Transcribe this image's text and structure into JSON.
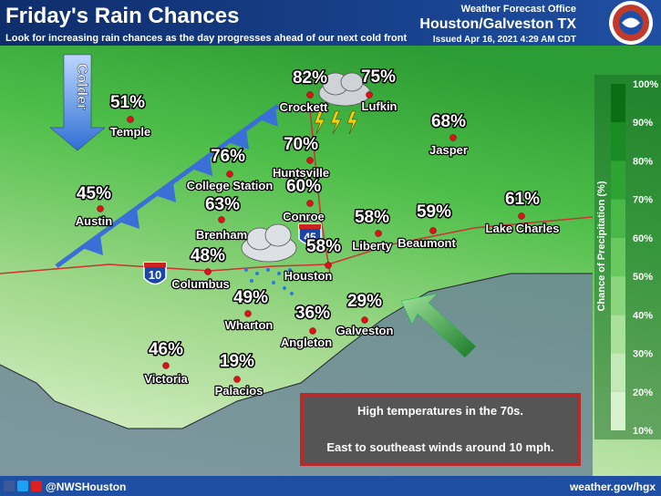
{
  "header": {
    "title": "Friday's Rain Chances",
    "subtitle": "Look for increasing rain chances as the day progresses ahead of our next cold front",
    "office": "Weather Forecast Office",
    "location": "Houston/Galveston TX",
    "issued": "Issued Apr 16, 2021 4:29 AM CDT"
  },
  "front_label": "Colder",
  "highways": [
    "10",
    "45"
  ],
  "cities": [
    {
      "name": "Temple",
      "chance": "51%"
    },
    {
      "name": "Crockett",
      "chance": "82%"
    },
    {
      "name": "Lufkin",
      "chance": "75%"
    },
    {
      "name": "Jasper",
      "chance": "68%"
    },
    {
      "name": "Huntsville",
      "chance": "70%"
    },
    {
      "name": "College Station",
      "chance": "76%"
    },
    {
      "name": "Austin",
      "chance": "45%"
    },
    {
      "name": "Conroe",
      "chance": "60%"
    },
    {
      "name": "Brenham",
      "chance": "63%"
    },
    {
      "name": "Liberty",
      "chance": "58%"
    },
    {
      "name": "Beaumont",
      "chance": "59%"
    },
    {
      "name": "Lake Charles",
      "chance": "61%"
    },
    {
      "name": "Houston",
      "chance": "58%"
    },
    {
      "name": "Columbus",
      "chance": "48%"
    },
    {
      "name": "Wharton",
      "chance": "49%"
    },
    {
      "name": "Angleton",
      "chance": "36%"
    },
    {
      "name": "Galveston",
      "chance": "29%"
    },
    {
      "name": "Victoria",
      "chance": "46%"
    },
    {
      "name": "Palacios",
      "chance": "19%"
    }
  ],
  "legend": {
    "title": "Chance of Precipitation (%)",
    "labels": [
      "100%",
      "90%",
      "80%",
      "70%",
      "60%",
      "50%",
      "40%",
      "30%",
      "20%",
      "10%"
    ]
  },
  "info_box": [
    "High temperatures in the 70s.",
    "East to southeast winds around 10 mph."
  ],
  "footer": {
    "handle": "@NWSHouston",
    "url": "weather.gov/hgx"
  }
}
